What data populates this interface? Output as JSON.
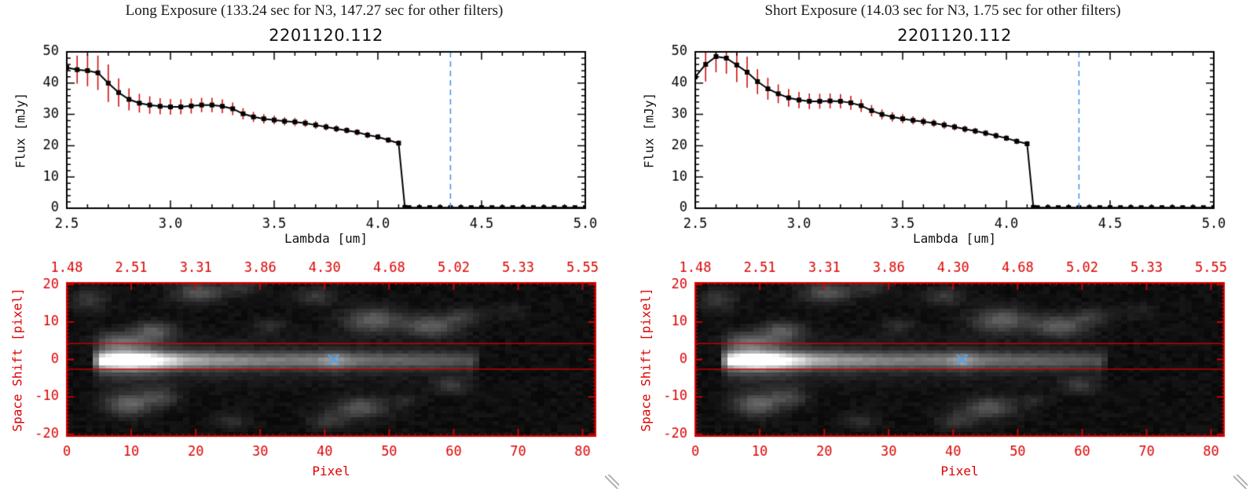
{
  "panels": [
    {
      "title": "Long Exposure (133.24 sec for N3, 147.27 sec for other filters)",
      "subtitle": "2201120.112",
      "flux_chart": 0
    },
    {
      "title": "Short Exposure (14.03 sec for N3, 1.75 sec for other filters)",
      "subtitle": "2201120.112",
      "flux_chart": 1
    }
  ],
  "labels": {
    "flux_y": "Flux [mJy]",
    "flux_x": "Lambda [um]",
    "img_y": "Space Shift [pixel]",
    "img_x": "Pixel"
  },
  "colors": {
    "black": "#000000",
    "red": "#dd0000",
    "error": "#cc1111",
    "blue_dash": "#4b97e6",
    "blue_cross": "#5aa0e6"
  },
  "chart_data": [
    {
      "type": "line",
      "title": "2201120.112",
      "panel_title": "Long Exposure (133.24 sec for N3, 147.27 sec for other filters)",
      "xlabel": "Lambda [um]",
      "ylabel": "Flux [mJy]",
      "xlim": [
        2.5,
        5.0
      ],
      "ylim": [
        0,
        50
      ],
      "xticks": [
        "2.5",
        "3.0",
        "3.5",
        "4.0",
        "4.5",
        "5.0"
      ],
      "yticks": [
        "0",
        "10",
        "20",
        "30",
        "40",
        "50"
      ],
      "marker": "filled-square",
      "error_bars": true,
      "dashed_vline_x": 4.35,
      "x": [
        2.5,
        2.55,
        2.6,
        2.65,
        2.7,
        2.75,
        2.8,
        2.85,
        2.9,
        2.95,
        3.0,
        3.05,
        3.1,
        3.15,
        3.2,
        3.25,
        3.3,
        3.35,
        3.4,
        3.45,
        3.5,
        3.55,
        3.6,
        3.65,
        3.7,
        3.75,
        3.8,
        3.85,
        3.9,
        3.95,
        4.0,
        4.05,
        4.1,
        4.13,
        4.15,
        4.2,
        4.25,
        4.3,
        4.35,
        4.4,
        4.45,
        4.5,
        4.55,
        4.6,
        4.65,
        4.7,
        4.75,
        4.8,
        4.85,
        4.9,
        4.95,
        5.0
      ],
      "y": [
        45,
        44.3,
        44,
        43.3,
        40,
        37,
        34.8,
        33.6,
        33,
        32.6,
        32.4,
        32.4,
        32.7,
        33,
        33,
        32.6,
        31.8,
        30.2,
        29.2,
        28.6,
        28.2,
        27.8,
        27.6,
        27.2,
        26.6,
        26,
        25.4,
        24.9,
        24.3,
        23.4,
        22.8,
        21.8,
        20.8,
        0.3,
        0.2,
        0.2,
        0.2,
        0.2,
        0.2,
        0.2,
        0.2,
        0.2,
        0.2,
        0.2,
        0.2,
        0.2,
        0.2,
        0.2,
        0.2,
        0.2,
        0.2,
        0.2
      ],
      "yerr": [
        4.5,
        4.5,
        5,
        5.5,
        6,
        4.5,
        3.5,
        3,
        2.8,
        2.6,
        2.5,
        2.4,
        2.4,
        2.3,
        2.3,
        2.2,
        2,
        1.8,
        1.6,
        1.5,
        1.4,
        1.3,
        1.3,
        1.2,
        1.2,
        1.1,
        1.1,
        1,
        1,
        1,
        0.9,
        0.9,
        0.9,
        0.5,
        0.4,
        0.4,
        0.4,
        0.4,
        0.4,
        0.4,
        0.4,
        0.4,
        0.4,
        0.4,
        0.4,
        0.4,
        0.4,
        0.4,
        0.4,
        0.4,
        0.4,
        0.4
      ]
    },
    {
      "type": "line",
      "title": "2201120.112",
      "panel_title": "Short Exposure (14.03 sec for N3, 1.75 sec for other filters)",
      "xlabel": "Lambda [um]",
      "ylabel": "Flux [mJy]",
      "xlim": [
        2.5,
        5.0
      ],
      "ylim": [
        0,
        50
      ],
      "xticks": [
        "2.5",
        "3.0",
        "3.5",
        "4.0",
        "4.5",
        "5.0"
      ],
      "yticks": [
        "0",
        "10",
        "20",
        "30",
        "40",
        "50"
      ],
      "marker": "filled-square",
      "error_bars": true,
      "dashed_vline_x": 4.35,
      "x": [
        2.5,
        2.55,
        2.6,
        2.65,
        2.7,
        2.75,
        2.8,
        2.85,
        2.9,
        2.95,
        3.0,
        3.05,
        3.1,
        3.15,
        3.2,
        3.25,
        3.3,
        3.35,
        3.4,
        3.45,
        3.5,
        3.55,
        3.6,
        3.65,
        3.7,
        3.75,
        3.8,
        3.85,
        3.9,
        3.95,
        4.0,
        4.05,
        4.1,
        4.13,
        4.15,
        4.2,
        4.25,
        4.3,
        4.35,
        4.4,
        4.45,
        4.5,
        4.55,
        4.6,
        4.65,
        4.7,
        4.75,
        4.8,
        4.85,
        4.9,
        4.95,
        5.0
      ],
      "y": [
        42,
        46,
        48.5,
        48,
        45.8,
        43.5,
        40.5,
        38.2,
        36.6,
        35.3,
        34.6,
        34.2,
        34.2,
        34.3,
        34.2,
        33.7,
        32.8,
        31.2,
        30,
        29.2,
        28.6,
        28.1,
        27.7,
        27.2,
        26.6,
        26,
        25.3,
        24.7,
        24,
        23.2,
        22.4,
        21.4,
        20.6,
        0.3,
        0.2,
        0.2,
        0.2,
        0.2,
        0.2,
        0.2,
        0.2,
        0.2,
        0.2,
        0.2,
        0.2,
        0.2,
        0.2,
        0.2,
        0.2,
        0.2,
        0.2,
        0.2
      ],
      "yerr": [
        6,
        5.5,
        5,
        5,
        5.5,
        5,
        4,
        3.5,
        3,
        2.8,
        2.6,
        2.5,
        2.4,
        2.4,
        2.3,
        2.2,
        2,
        1.8,
        1.6,
        1.5,
        1.4,
        1.3,
        1.3,
        1.2,
        1.2,
        1.1,
        1.1,
        1,
        1,
        1,
        0.9,
        0.9,
        0.9,
        0.5,
        0.4,
        0.4,
        0.4,
        0.4,
        0.4,
        0.4,
        0.4,
        0.4,
        0.4,
        0.4,
        0.4,
        0.4,
        0.4,
        0.4,
        0.4,
        0.4,
        0.4,
        0.4
      ]
    },
    {
      "type": "heatmap",
      "xlabel": "Pixel",
      "ylabel": "Space Shift [pixel]",
      "xlim": [
        0,
        82
      ],
      "ylim": [
        -20.5,
        20.5
      ],
      "xticks": [
        "0",
        "10",
        "20",
        "30",
        "40",
        "50",
        "60",
        "70",
        "80"
      ],
      "yticks": [
        "20",
        "10",
        "0",
        "-10",
        "-20"
      ],
      "top_axis_labels": [
        "1.48",
        "2.51",
        "3.31",
        "3.86",
        "4.30",
        "4.68",
        "5.02",
        "5.33",
        "5.55"
      ],
      "aperture_lines": [
        4.3,
        -2.6
      ],
      "cross_marker": {
        "pixel": 41.4,
        "shift": 0
      },
      "streak_center": -0.3,
      "streak_sigma": 1.45,
      "halo_sigma": 3.6,
      "halo_frac": 0.3,
      "streak_profile": [
        [
          3,
          0
        ],
        [
          5,
          0.78
        ],
        [
          7,
          0.95
        ],
        [
          9,
          1.0
        ],
        [
          12,
          0.93
        ],
        [
          15,
          0.68
        ],
        [
          18,
          0.5
        ],
        [
          22,
          0.42
        ],
        [
          28,
          0.36
        ],
        [
          34,
          0.32
        ],
        [
          38,
          0.34
        ],
        [
          41,
          0.44
        ],
        [
          43,
          0.34
        ],
        [
          47,
          0.28
        ],
        [
          52,
          0.25
        ],
        [
          57,
          0.22
        ],
        [
          62,
          0.2
        ],
        [
          63,
          0.12
        ],
        [
          64,
          0
        ]
      ],
      "blobs": [
        [
          9,
          -12,
          2.5,
          2.2,
          0.33
        ],
        [
          14,
          -10,
          2,
          1.8,
          0.2
        ],
        [
          13,
          7.5,
          2.2,
          1.8,
          0.28
        ],
        [
          8,
          4.5,
          2.6,
          2,
          0.26
        ],
        [
          20,
          18,
          2.8,
          2,
          0.26
        ],
        [
          27,
          19.5,
          2,
          1.5,
          0.14
        ],
        [
          38,
          17,
          2.2,
          1.8,
          0.16
        ],
        [
          47,
          10.5,
          3,
          2.2,
          0.32
        ],
        [
          56,
          9,
          2.8,
          2,
          0.3
        ],
        [
          61,
          11.5,
          2,
          1.5,
          0.16
        ],
        [
          45,
          -13,
          2.8,
          2,
          0.27
        ],
        [
          40,
          -16.5,
          2,
          1.6,
          0.16
        ],
        [
          59,
          -7,
          2,
          1.6,
          0.15
        ],
        [
          25,
          -16.5,
          2,
          1.5,
          0.12
        ],
        [
          3,
          16,
          2,
          2,
          0.16
        ],
        [
          31,
          9,
          1.8,
          1.5,
          0.1
        ],
        [
          52,
          -11,
          1.6,
          1.4,
          0.09
        ],
        [
          68,
          13,
          1.8,
          1.5,
          0.07
        ]
      ]
    }
  ]
}
